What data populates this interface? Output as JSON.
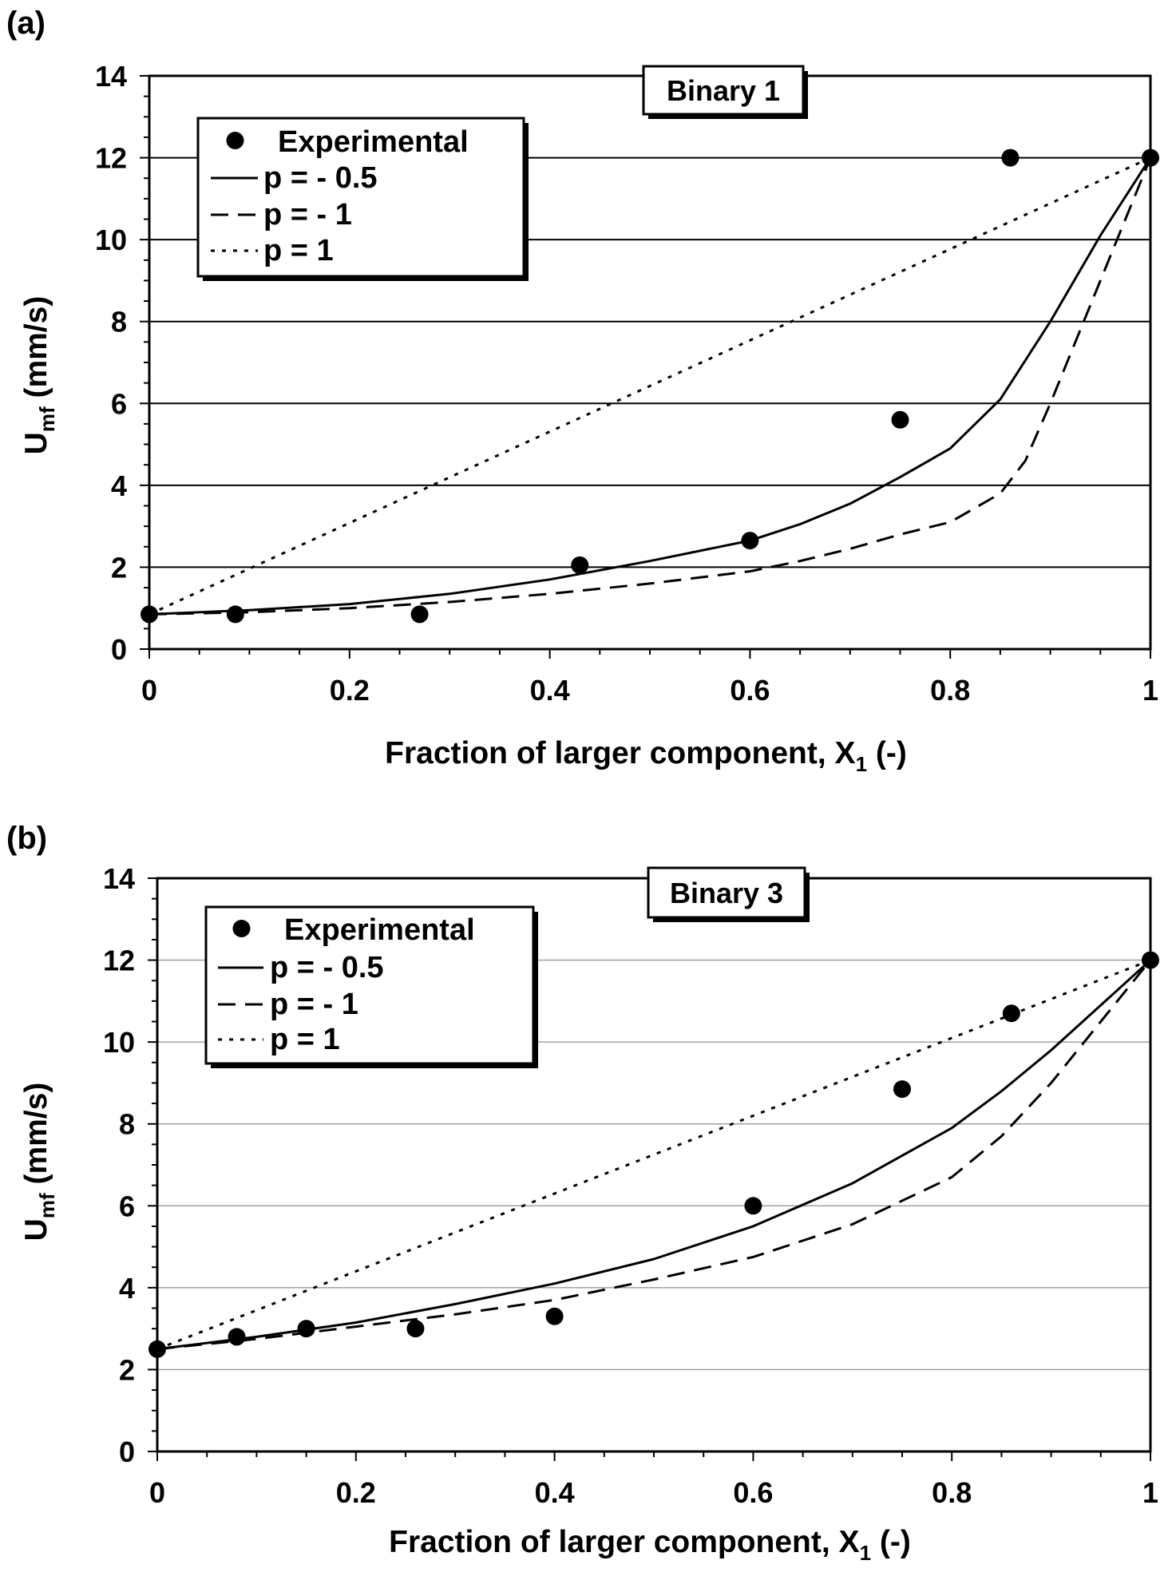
{
  "chart_data": [
    {
      "panel_label": "(a)",
      "type": "line",
      "title": "Binary 1",
      "xlabel": "Fraction of larger component, X",
      "xlabel_sub": "1",
      "xlabel_suffix": "(-)",
      "ylabel": "U",
      "ylabel_sub": "mf",
      "ylabel_suffix": "(mm/s)",
      "xlim": [
        0,
        1
      ],
      "ylim": [
        0,
        14
      ],
      "x_ticks": [
        "0",
        "0.2",
        "0.4",
        "0.6",
        "0.8",
        "1"
      ],
      "y_ticks": [
        "0",
        "2",
        "4",
        "6",
        "8",
        "10",
        "12",
        "14"
      ],
      "grid": "horizontal",
      "legend_position": "top-left",
      "experimental": {
        "name": "Experimental",
        "x": [
          0,
          0.086,
          0.27,
          0.43,
          0.6,
          0.75,
          0.86,
          1.0
        ],
        "y": [
          0.85,
          0.85,
          0.85,
          2.05,
          2.65,
          5.6,
          12.0,
          12.0
        ]
      },
      "series": [
        {
          "name": "p = - 0.5",
          "style": "solid",
          "x": [
            0,
            0.1,
            0.2,
            0.3,
            0.4,
            0.5,
            0.6,
            0.65,
            0.7,
            0.75,
            0.8,
            0.85,
            0.9,
            0.95,
            1.0
          ],
          "y": [
            0.85,
            0.95,
            1.1,
            1.35,
            1.7,
            2.15,
            2.65,
            3.05,
            3.55,
            4.2,
            4.9,
            6.1,
            8.0,
            10.1,
            12.0
          ]
        },
        {
          "name": "p = - 1",
          "style": "dashed",
          "x": [
            0,
            0.1,
            0.2,
            0.3,
            0.4,
            0.5,
            0.6,
            0.65,
            0.7,
            0.75,
            0.8,
            0.85,
            0.875,
            0.9,
            0.95,
            1.0
          ],
          "y": [
            0.85,
            0.9,
            1.0,
            1.15,
            1.35,
            1.6,
            1.9,
            2.15,
            2.45,
            2.8,
            3.1,
            3.8,
            4.6,
            6.0,
            9.0,
            12.0
          ]
        },
        {
          "name": "p = 1",
          "style": "dotted",
          "x": [
            0,
            1.0
          ],
          "y": [
            0.85,
            12.0
          ]
        }
      ]
    },
    {
      "panel_label": "(b)",
      "type": "line",
      "title": "Binary 3",
      "xlabel": "Fraction of larger component, X",
      "xlabel_sub": "1",
      "xlabel_suffix": "(-)",
      "ylabel": "U",
      "ylabel_sub": "mf",
      "ylabel_suffix": "(mm/s)",
      "xlim": [
        0,
        1
      ],
      "ylim": [
        0,
        14
      ],
      "x_ticks": [
        "0",
        "0.2",
        "0.4",
        "0.6",
        "0.8",
        "1"
      ],
      "y_ticks": [
        "0",
        "2",
        "4",
        "6",
        "8",
        "10",
        "12",
        "14"
      ],
      "grid": "horizontal",
      "legend_position": "top-left",
      "experimental": {
        "name": "Experimental",
        "x": [
          0,
          0.08,
          0.15,
          0.26,
          0.4,
          0.6,
          0.75,
          0.86,
          1.0
        ],
        "y": [
          2.5,
          2.8,
          3.0,
          3.0,
          3.3,
          6.0,
          8.85,
          10.7,
          12.0
        ]
      },
      "series": [
        {
          "name": "p = - 0.5",
          "style": "solid",
          "x": [
            0,
            0.1,
            0.2,
            0.3,
            0.4,
            0.5,
            0.6,
            0.7,
            0.8,
            0.85,
            0.9,
            0.95,
            1.0
          ],
          "y": [
            2.5,
            2.8,
            3.15,
            3.6,
            4.1,
            4.7,
            5.5,
            6.55,
            7.9,
            8.8,
            9.8,
            10.9,
            12.0
          ]
        },
        {
          "name": "p = - 1",
          "style": "dashed",
          "x": [
            0,
            0.1,
            0.2,
            0.3,
            0.4,
            0.5,
            0.6,
            0.7,
            0.8,
            0.85,
            0.9,
            0.95,
            1.0
          ],
          "y": [
            2.5,
            2.75,
            3.05,
            3.35,
            3.7,
            4.2,
            4.75,
            5.55,
            6.7,
            7.7,
            9.0,
            10.5,
            12.0
          ]
        },
        {
          "name": "p = 1",
          "style": "dotted",
          "x": [
            0,
            1.0
          ],
          "y": [
            2.5,
            12.0
          ]
        }
      ]
    }
  ]
}
